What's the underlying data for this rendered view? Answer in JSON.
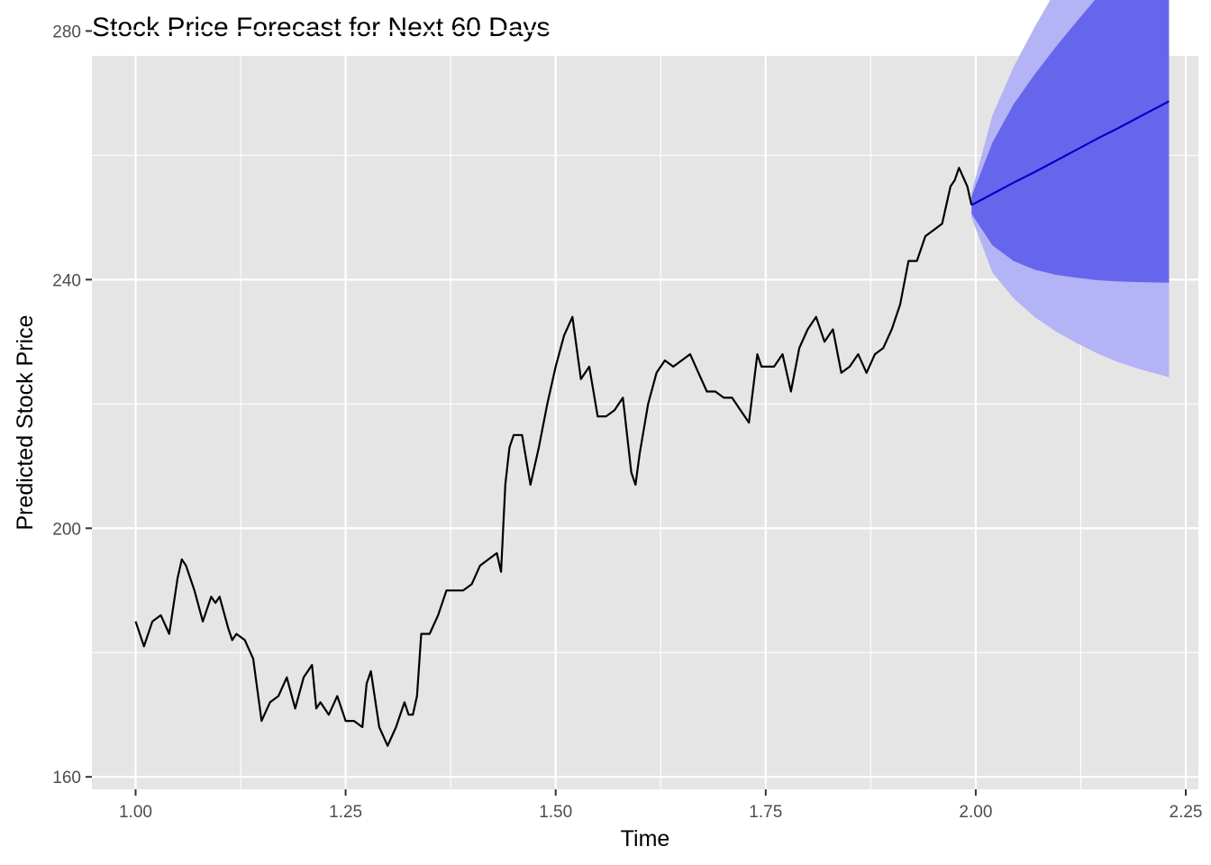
{
  "chart_data": {
    "type": "line",
    "title": "Stock Price Forecast for Next 60 Days",
    "xlabel": "Time",
    "ylabel": "Predicted Stock Price",
    "xlim": [
      0.948,
      2.265
    ],
    "ylim": [
      158,
      276
    ],
    "x_ticks": [
      1.0,
      1.25,
      1.5,
      1.75,
      2.0,
      2.25
    ],
    "x_tick_labels": [
      "1.00",
      "1.25",
      "1.50",
      "1.75",
      "2.00",
      "2.25"
    ],
    "y_ticks": [
      160,
      200,
      240,
      280
    ],
    "y_tick_labels": [
      "160",
      "200",
      "240",
      "280"
    ],
    "grid": true,
    "legend": "none",
    "colors": {
      "panel": "#e5e5e5",
      "grid": "#ffffff",
      "history_line": "#000000",
      "forecast_line": "#0000cd",
      "band_95": "#b3b3f5",
      "band_80": "#6666ec"
    },
    "history": {
      "x": [
        1.0,
        1.01,
        1.02,
        1.03,
        1.04,
        1.05,
        1.055,
        1.06,
        1.07,
        1.08,
        1.09,
        1.095,
        1.1,
        1.11,
        1.115,
        1.12,
        1.13,
        1.14,
        1.15,
        1.16,
        1.17,
        1.18,
        1.19,
        1.2,
        1.21,
        1.215,
        1.22,
        1.23,
        1.24,
        1.25,
        1.26,
        1.27,
        1.275,
        1.28,
        1.29,
        1.3,
        1.31,
        1.32,
        1.325,
        1.33,
        1.335,
        1.34,
        1.35,
        1.36,
        1.37,
        1.38,
        1.39,
        1.4,
        1.41,
        1.42,
        1.43,
        1.435,
        1.44,
        1.445,
        1.45,
        1.46,
        1.47,
        1.48,
        1.49,
        1.5,
        1.51,
        1.52,
        1.53,
        1.54,
        1.55,
        1.56,
        1.57,
        1.58,
        1.59,
        1.595,
        1.6,
        1.61,
        1.62,
        1.63,
        1.64,
        1.65,
        1.66,
        1.67,
        1.68,
        1.69,
        1.7,
        1.71,
        1.72,
        1.73,
        1.74,
        1.745,
        1.75,
        1.76,
        1.77,
        1.78,
        1.79,
        1.8,
        1.81,
        1.82,
        1.83,
        1.84,
        1.85,
        1.86,
        1.87,
        1.88,
        1.89,
        1.9,
        1.91,
        1.92,
        1.93,
        1.94,
        1.95,
        1.96,
        1.97,
        1.975,
        1.98,
        1.99,
        1.995
      ],
      "y": [
        185,
        181,
        185,
        186,
        183,
        192,
        195,
        194,
        190,
        185,
        189,
        188,
        189,
        184,
        182,
        183,
        182,
        179,
        169,
        172,
        173,
        176,
        171,
        176,
        178,
        171,
        172,
        170,
        173,
        169,
        169,
        168,
        175,
        177,
        168,
        165,
        168,
        172,
        170,
        170,
        173,
        183,
        183,
        186,
        190,
        190,
        190,
        191,
        194,
        195,
        196,
        193,
        207,
        213,
        215,
        215,
        207,
        213,
        220,
        226,
        231,
        234,
        224,
        226,
        218,
        218,
        219,
        221,
        209,
        207,
        212,
        220,
        225,
        227,
        226,
        227,
        228,
        225,
        222,
        222,
        221,
        221,
        219,
        217,
        228,
        226,
        226,
        226,
        228,
        222,
        229,
        232,
        234,
        230,
        232,
        225,
        226,
        228,
        225,
        228,
        229,
        232,
        236,
        243,
        243,
        247,
        248,
        249,
        255,
        256,
        258,
        255,
        252
      ],
      "end_point": [
        1.995,
        252
      ]
    },
    "forecast": {
      "x": [
        1.995,
        2.02,
        2.045,
        2.07,
        2.095,
        2.12,
        2.145,
        2.17,
        2.195,
        2.23
      ],
      "mean": [
        252.0,
        253.8,
        255.6,
        257.3,
        259.1,
        260.9,
        262.7,
        264.4,
        266.2,
        268.7
      ],
      "lo80": [
        250.6,
        245.5,
        243.0,
        241.6,
        240.8,
        240.3,
        239.9,
        239.7,
        239.6,
        239.5
      ],
      "hi80": [
        253.4,
        262.1,
        268.2,
        273.0,
        277.4,
        281.5,
        285.5,
        289.2,
        292.8,
        297.9
      ],
      "lo95": [
        250.0,
        241.1,
        237.0,
        234.0,
        231.7,
        229.8,
        228.1,
        226.7,
        225.6,
        224.3
      ],
      "hi95": [
        254.0,
        266.5,
        274.2,
        280.6,
        286.5,
        292.0,
        297.3,
        302.2,
        306.9,
        313.1
      ]
    }
  }
}
